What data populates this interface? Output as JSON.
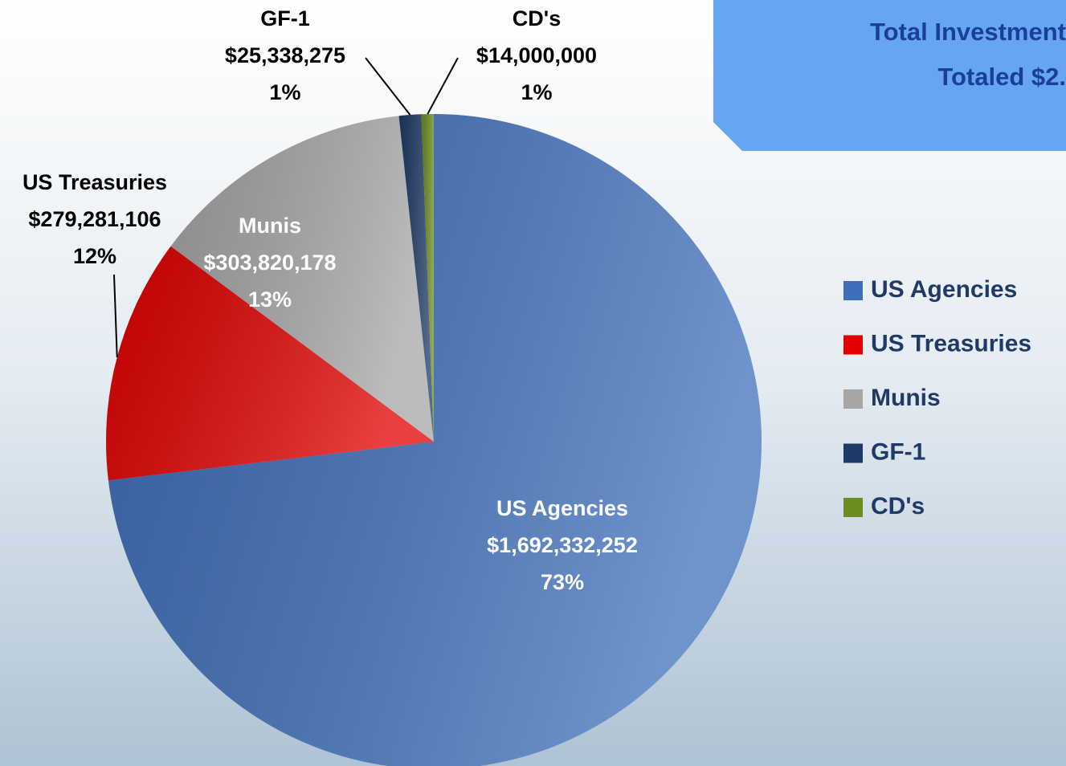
{
  "chart_data": {
    "type": "pie",
    "title_lines": [
      "Total Investment",
      "Totaled $2."
    ],
    "categories": [
      "US Agencies",
      "US Treasuries",
      "Munis",
      "GF-1",
      "CD's"
    ],
    "values": [
      1692332252,
      279281106,
      303820178,
      25338275,
      14000000
    ],
    "value_labels": [
      "$1,692,332,252",
      "$279,281,106",
      "$303,820,178",
      "$25,338,275",
      "$14,000,000"
    ],
    "percent_labels": [
      "73%",
      "12%",
      "13%",
      "1%",
      "1%"
    ],
    "colors": [
      "#3f6fba",
      "#e00000",
      "#a6a6a6",
      "#1f3a66",
      "#6b8e23"
    ],
    "legend": "right"
  }
}
